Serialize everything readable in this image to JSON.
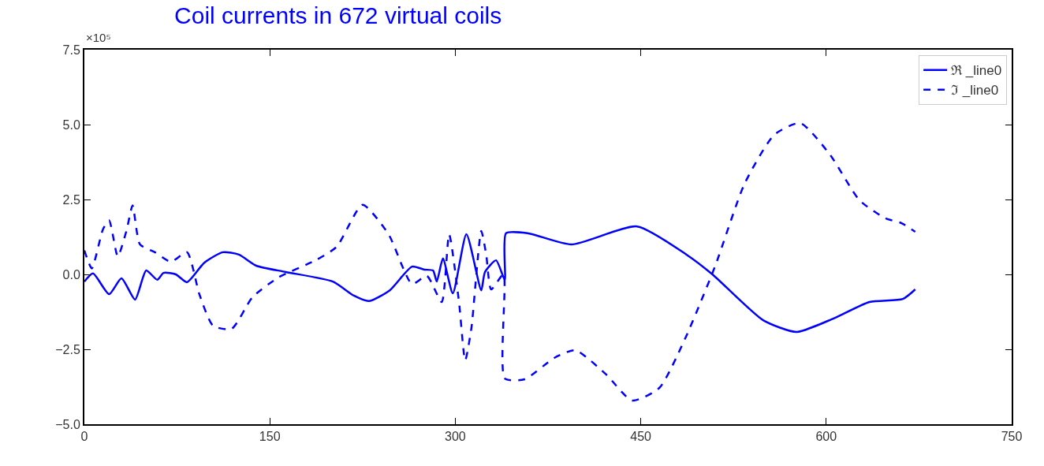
{
  "chart_data": {
    "type": "line",
    "title": "Coil currents in 672 virtual coils",
    "annotations": [
      "×10⁵"
    ],
    "xlim": [
      0,
      750
    ],
    "xticks": [
      0,
      150,
      300,
      450,
      600,
      750
    ],
    "ylim": [
      -5,
      7.5
    ],
    "yticks": [
      {
        "value": -5,
        "label": "−5.0"
      },
      {
        "value": -2.5,
        "label": "−2.5"
      },
      {
        "value": 0,
        "label": "0.0"
      },
      {
        "value": 2.5,
        "label": "2.5"
      },
      {
        "value": 5,
        "label": "5.0"
      },
      {
        "value": 7.5,
        "label": "7.5"
      }
    ],
    "legend": "top right",
    "marker": "none",
    "series": [
      {
        "name": "ℜ _line0",
        "color": "#0000ff",
        "line_style": "solid",
        "x": [
          0,
          7,
          20,
          30,
          41,
          50,
          59,
          64,
          74,
          83,
          97,
          112,
          125,
          139,
          163,
          201,
          218,
          230,
          247,
          265,
          275,
          282,
          285,
          290,
          298,
          309,
          321,
          324,
          333,
          340,
          341,
          359,
          394,
          447,
          487,
          508,
          549,
          576,
          606,
          635,
          662,
          672
        ],
        "values": [
          -0.24,
          0.03,
          -0.66,
          -0.13,
          -0.84,
          0.13,
          -0.18,
          0.05,
          0,
          -0.26,
          0.39,
          0.74,
          0.66,
          0.29,
          0.08,
          -0.24,
          -0.71,
          -0.89,
          -0.53,
          0.26,
          0.16,
          0.13,
          -0.24,
          0.53,
          -0.63,
          1.34,
          -0.53,
          0.08,
          0.47,
          -0.18,
          1.37,
          1.37,
          1.0,
          1.6,
          0.66,
          0,
          -1.53,
          -1.92,
          -1.47,
          -0.92,
          -0.82,
          -0.5
        ]
      },
      {
        "name": "ℑ _line0",
        "color": "#0000ff",
        "line_style": "dashed",
        "x": [
          0,
          6,
          15,
          20,
          27,
          34,
          39,
          45,
          57,
          70,
          83,
          93,
          104,
          119,
          136,
          157,
          187,
          204,
          225,
          246,
          265,
          277,
          289,
          295,
          303,
          308,
          313,
          321,
          325,
          329,
          339,
          340,
          356,
          380,
          397,
          422,
          443,
          465,
          486,
          510,
          534,
          558,
          579,
          603,
          627,
          648,
          661,
          672
        ],
        "values": [
          0.8,
          0.2,
          1.5,
          1.8,
          0.6,
          1.45,
          2.3,
          1.0,
          0.74,
          0.42,
          0.74,
          -0.66,
          -1.71,
          -1.82,
          -0.76,
          -0.1,
          0.47,
          0.92,
          2.32,
          1.34,
          -0.32,
          -0.05,
          -0.92,
          1.34,
          -0.92,
          -2.87,
          -1.8,
          1.45,
          0.66,
          -0.5,
          0,
          -3.47,
          -3.5,
          -2.79,
          -2.53,
          -3.34,
          -4.21,
          -3.79,
          -2.13,
          0.26,
          3.03,
          4.66,
          5.05,
          4.0,
          2.47,
          1.87,
          1.71,
          1.42
        ]
      }
    ]
  }
}
